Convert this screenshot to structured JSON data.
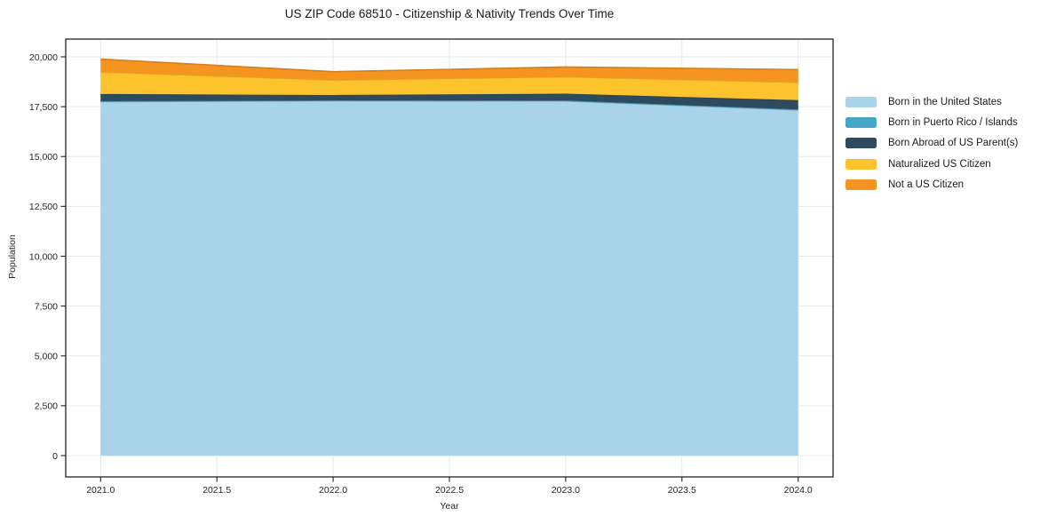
{
  "chart_data": {
    "type": "area",
    "stacked": true,
    "title": "US ZIP Code 68510 - Citizenship & Nativity Trends Over Time",
    "xlabel": "Year",
    "ylabel": "Population",
    "x": [
      2021,
      2022,
      2023,
      2024
    ],
    "series": [
      {
        "key": "born-us",
        "name": "Born in the United States",
        "color": "#a8d3e8",
        "values": [
          17750,
          17790,
          17780,
          17330
        ]
      },
      {
        "key": "born-pr",
        "name": "Born in Puerto Rico / Islands",
        "color": "#45a6c6",
        "values": [
          25,
          25,
          30,
          30
        ]
      },
      {
        "key": "born-abroad",
        "name": "Born Abroad of US Parent(s)",
        "color": "#2d4a5e",
        "values": [
          360,
          270,
          340,
          470
        ]
      },
      {
        "key": "naturalized",
        "name": "Naturalized US Citizen",
        "color": "#fcc32d",
        "values": [
          1110,
          750,
          850,
          890
        ]
      },
      {
        "key": "not-citizen",
        "name": "Not a US Citizen",
        "color": "#f69420",
        "values": [
          640,
          420,
          490,
          640
        ]
      }
    ],
    "xlim": [
      2020.85,
      2024.15
    ],
    "ylim": [
      -1070,
      20890
    ],
    "xticks": {
      "values": [
        2021.0,
        2021.5,
        2022.0,
        2022.5,
        2023.0,
        2023.5,
        2024.0
      ],
      "labels": [
        "2021.0",
        "2021.5",
        "2022.0",
        "2022.5",
        "2023.0",
        "2023.5",
        "2024.0"
      ]
    },
    "yticks": {
      "values": [
        0,
        2500,
        5000,
        7500,
        10000,
        12500,
        15000,
        17500,
        20000
      ],
      "labels": [
        "0",
        "2,500",
        "5,000",
        "7,500",
        "10,000",
        "12,500",
        "15,000",
        "17,500",
        "20,000"
      ]
    },
    "grid": true,
    "legend_position": "right"
  },
  "colors": {
    "background": "#ffffff",
    "grid": "#e7e7e7",
    "spine": "#222222",
    "tick": "#222222",
    "text": "#262626"
  }
}
